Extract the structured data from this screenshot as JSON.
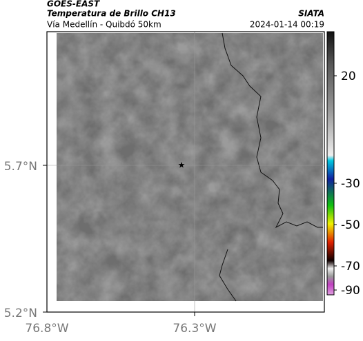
{
  "header": {
    "title": "GOES-EAST",
    "subtitle": "Temperatura de Brillo CH13",
    "route": "Vía Medellín - Quibdó 50km",
    "source": "SIATA",
    "timestamp": "2024-01-14 00:19"
  },
  "map": {
    "lat_labels": [
      "5.7°N",
      "5.2°N"
    ],
    "lon_labels": [
      "76.8°W",
      "76.3°W"
    ]
  },
  "colorbar": {
    "labels": [
      "20",
      "-30",
      "-50",
      "-70",
      "-90"
    ]
  }
}
